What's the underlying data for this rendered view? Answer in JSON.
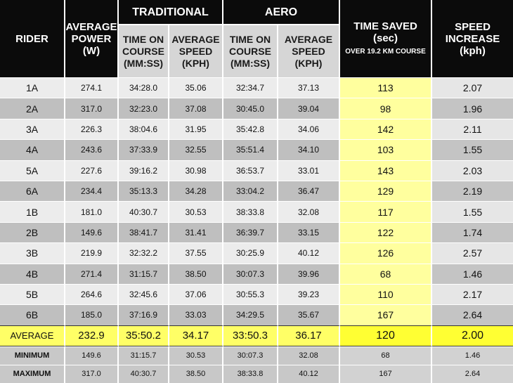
{
  "header": {
    "rider": "RIDER",
    "avg_power": "AVERAGE POWER (W)",
    "traditional": "TRADITIONAL",
    "aero": "AERO",
    "time_on_course": "TIME ON COURSE (MM:SS)",
    "average_speed": "AVERAGE SPEED (KPH)",
    "time_saved": "TIME SAVED (sec)",
    "time_saved_sub": "OVER 19.2 KM COURSE",
    "speed_increase": "SPEED INCREASE (kph)"
  },
  "rows": [
    {
      "rider": "1A",
      "power": "274.1",
      "trad_time": "34:28.0",
      "trad_speed": "35.06",
      "aero_time": "32:34.7",
      "aero_speed": "37.13",
      "saved": "113",
      "increase": "2.07"
    },
    {
      "rider": "2A",
      "power": "317.0",
      "trad_time": "32:23.0",
      "trad_speed": "37.08",
      "aero_time": "30:45.0",
      "aero_speed": "39.04",
      "saved": "98",
      "increase": "1.96"
    },
    {
      "rider": "3A",
      "power": "226.3",
      "trad_time": "38:04.6",
      "trad_speed": "31.95",
      "aero_time": "35:42.8",
      "aero_speed": "34.06",
      "saved": "142",
      "increase": "2.11"
    },
    {
      "rider": "4A",
      "power": "243.6",
      "trad_time": "37:33.9",
      "trad_speed": "32.55",
      "aero_time": "35:51.4",
      "aero_speed": "34.10",
      "saved": "103",
      "increase": "1.55"
    },
    {
      "rider": "5A",
      "power": "227.6",
      "trad_time": "39:16.2",
      "trad_speed": "30.98",
      "aero_time": "36:53.7",
      "aero_speed": "33.01",
      "saved": "143",
      "increase": "2.03"
    },
    {
      "rider": "6A",
      "power": "234.4",
      "trad_time": "35:13.3",
      "trad_speed": "34.28",
      "aero_time": "33:04.2",
      "aero_speed": "36.47",
      "saved": "129",
      "increase": "2.19"
    },
    {
      "rider": "1B",
      "power": "181.0",
      "trad_time": "40:30.7",
      "trad_speed": "30.53",
      "aero_time": "38:33.8",
      "aero_speed": "32.08",
      "saved": "117",
      "increase": "1.55"
    },
    {
      "rider": "2B",
      "power": "149.6",
      "trad_time": "38:41.7",
      "trad_speed": "31.41",
      "aero_time": "36:39.7",
      "aero_speed": "33.15",
      "saved": "122",
      "increase": "1.74"
    },
    {
      "rider": "3B",
      "power": "219.9",
      "trad_time": "32:32.2",
      "trad_speed": "37.55",
      "aero_time": "30:25.9",
      "aero_speed": "40.12",
      "saved": "126",
      "increase": "2.57"
    },
    {
      "rider": "4B",
      "power": "271.4",
      "trad_time": "31:15.7",
      "trad_speed": "38.50",
      "aero_time": "30:07.3",
      "aero_speed": "39.96",
      "saved": "68",
      "increase": "1.46"
    },
    {
      "rider": "5B",
      "power": "264.6",
      "trad_time": "32:45.6",
      "trad_speed": "37.06",
      "aero_time": "30:55.3",
      "aero_speed": "39.23",
      "saved": "110",
      "increase": "2.17"
    },
    {
      "rider": "6B",
      "power": "185.0",
      "trad_time": "37:16.9",
      "trad_speed": "33.03",
      "aero_time": "34:29.5",
      "aero_speed": "35.67",
      "saved": "167",
      "increase": "2.64"
    }
  ],
  "average": {
    "rider": "AVERAGE",
    "power": "232.9",
    "trad_time": "35:50.2",
    "trad_speed": "34.17",
    "aero_time": "33:50.3",
    "aero_speed": "36.17",
    "saved": "120",
    "increase": "2.00"
  },
  "minimum": {
    "rider": "MINIMUM",
    "power": "149.6",
    "trad_time": "31:15.7",
    "trad_speed": "30.53",
    "aero_time": "30:07.3",
    "aero_speed": "32.08",
    "saved": "68",
    "increase": "1.46"
  },
  "maximum": {
    "rider": "MAXIMUM",
    "power": "317.0",
    "trad_time": "40:30.7",
    "trad_speed": "38.50",
    "aero_time": "38:33.8",
    "aero_speed": "40.12",
    "saved": "167",
    "increase": "2.64"
  }
}
